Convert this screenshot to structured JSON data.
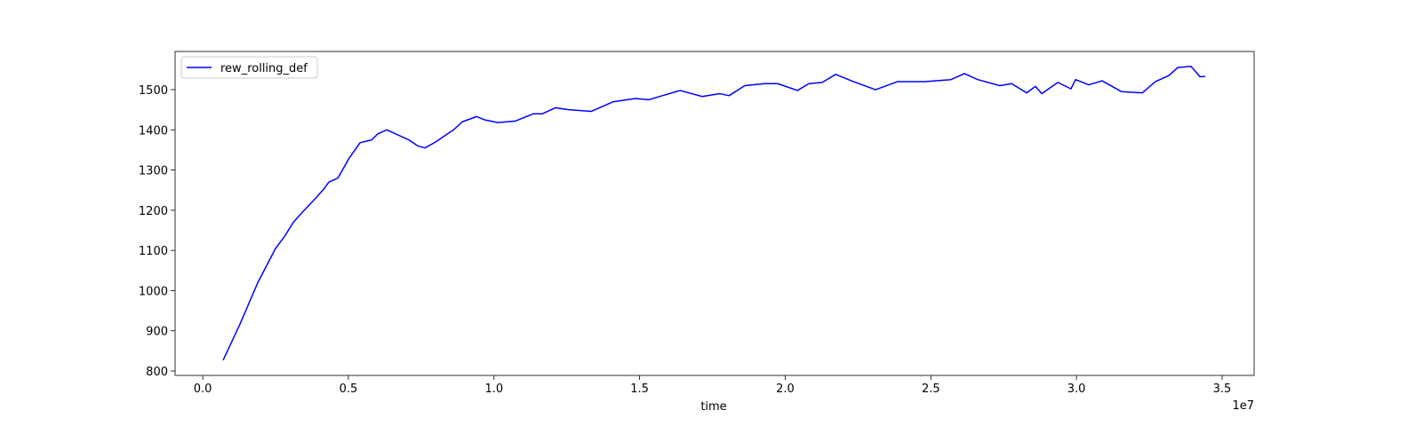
{
  "chart_data": {
    "type": "line",
    "xlabel": "time",
    "x_offset_label": "1e7",
    "x": [
      0.07,
      0.128,
      0.189,
      0.25,
      0.281,
      0.311,
      0.342,
      0.388,
      0.418,
      0.433,
      0.464,
      0.503,
      0.54,
      0.58,
      0.601,
      0.632,
      0.662,
      0.708,
      0.738,
      0.763,
      0.8,
      0.83,
      0.861,
      0.891,
      0.94,
      0.967,
      1.013,
      1.074,
      1.135,
      1.166,
      1.211,
      1.257,
      1.334,
      1.41,
      1.486,
      1.532,
      1.578,
      1.639,
      1.715,
      1.776,
      1.807,
      1.861,
      1.929,
      1.974,
      2.042,
      2.081,
      2.127,
      2.173,
      2.234,
      2.31,
      2.386,
      2.478,
      2.569,
      2.615,
      2.661,
      2.737,
      2.777,
      2.829,
      2.859,
      2.881,
      2.936,
      2.981,
      2.997,
      3.042,
      3.088,
      3.155,
      3.226,
      3.271,
      3.317,
      3.348,
      3.393,
      3.409,
      3.424,
      3.442
    ],
    "series": [
      {
        "name": "rew_rolling_def",
        "color": "#0000ff",
        "values": [
          827,
          917,
          1020,
          1105,
          1135,
          1170,
          1195,
          1230,
          1255,
          1270,
          1280,
          1330,
          1368,
          1375,
          1390,
          1400,
          1390,
          1375,
          1360,
          1355,
          1370,
          1385,
          1400,
          1420,
          1433,
          1425,
          1418,
          1422,
          1440,
          1440,
          1455,
          1450,
          1446,
          1470,
          1478,
          1475,
          1485,
          1498,
          1483,
          1490,
          1485,
          1510,
          1515,
          1515,
          1498,
          1515,
          1518,
          1538,
          1520,
          1500,
          1520,
          1520,
          1525,
          1540,
          1525,
          1510,
          1515,
          1492,
          1508,
          1490,
          1518,
          1502,
          1525,
          1512,
          1522,
          1495,
          1492,
          1520,
          1535,
          1555,
          1558,
          1545,
          1532,
          1533
        ]
      }
    ],
    "xlim": [
      -0.095,
      3.61
    ],
    "ylim": [
      789,
      1595
    ],
    "xticks": [
      {
        "value": 0,
        "label": "0.0"
      },
      0.5,
      {
        "value": 1,
        "label": "1.0"
      },
      1.5,
      {
        "value": 2,
        "label": "2.0"
      },
      2.5,
      {
        "value": 3,
        "label": "3.0"
      },
      3.5
    ],
    "yticks": [
      800,
      900,
      1000,
      1100,
      1200,
      1300,
      1400,
      1500
    ],
    "legend": "upper left",
    "grid": false
  }
}
